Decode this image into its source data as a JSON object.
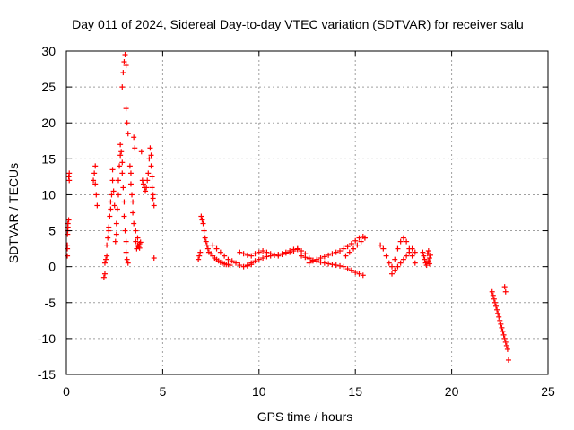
{
  "chart_data": {
    "type": "scatter",
    "title": "Day 011 of 2024, Sidereal Day-to-day VTEC variation (SDTVAR) for receiver salu",
    "xlabel": "GPS time / hours",
    "ylabel": "SDTVAR / TECUs",
    "xlim": [
      0,
      25
    ],
    "ylim": [
      -15,
      30
    ],
    "x_ticks": [
      0,
      5,
      10,
      15,
      20,
      25
    ],
    "y_ticks": [
      -15,
      -10,
      -5,
      0,
      5,
      10,
      15,
      20,
      25,
      30
    ],
    "x_tick_labels": [
      "0",
      "5",
      "10",
      "15",
      "20",
      "25"
    ],
    "y_tick_labels": [
      "-15",
      "-10",
      "-5",
      "0",
      "5",
      "10",
      "15",
      "20",
      "25",
      "30"
    ],
    "grid": true,
    "marker": "plus",
    "colors": {
      "points": "#ff0000",
      "grid": "#a0a0a0",
      "frame": "#000000"
    },
    "series": [
      {
        "name": "SDTVAR",
        "x": [
          0.05,
          0.05,
          0.05,
          0.06,
          0.07,
          0.08,
          0.08,
          0.12,
          0.12,
          0.15,
          0.15,
          1.4,
          1.45,
          1.5,
          1.5,
          1.55,
          1.6,
          1.95,
          2.0,
          2.0,
          2.05,
          2.1,
          2.1,
          2.15,
          2.2,
          2.2,
          2.25,
          2.3,
          2.3,
          2.35,
          2.4,
          2.4,
          2.45,
          2.5,
          2.55,
          2.6,
          2.6,
          2.65,
          2.7,
          2.7,
          2.75,
          2.8,
          2.8,
          2.85,
          2.9,
          2.9,
          2.95,
          3.0,
          3.0,
          3.05,
          3.1,
          3.1,
          3.15,
          3.2,
          2.9,
          2.95,
          3.0,
          3.05,
          3.1,
          3.1,
          3.15,
          3.2,
          3.3,
          3.35,
          3.35,
          3.4,
          3.45,
          3.45,
          3.5,
          3.5,
          3.55,
          3.6,
          3.6,
          3.65,
          3.7,
          3.7,
          3.75,
          3.8,
          3.8,
          3.85,
          3.9,
          3.95,
          4.0,
          4.05,
          4.1,
          4.15,
          4.2,
          4.25,
          4.3,
          4.35,
          4.4,
          4.4,
          4.45,
          4.45,
          4.5,
          4.5,
          4.55,
          4.55,
          6.85,
          6.9,
          6.95,
          7.0,
          7.05,
          7.1,
          7.15,
          7.2,
          7.25,
          7.3,
          7.35,
          7.4,
          7.5,
          7.6,
          7.7,
          7.8,
          7.9,
          8.0,
          8.1,
          8.2,
          8.3,
          8.4,
          8.5,
          7.6,
          7.8,
          8.0,
          8.2,
          8.4,
          8.6,
          8.8,
          9.0,
          9.2,
          9.4,
          9.6,
          9.0,
          9.2,
          9.4,
          9.6,
          9.8,
          10.0,
          10.2,
          10.4,
          10.6,
          10.8,
          11.0,
          11.2,
          11.4,
          11.6,
          11.8,
          12.0,
          9.4,
          9.6,
          9.8,
          10.0,
          10.2,
          10.4,
          10.6,
          10.8,
          11.0,
          11.2,
          11.4,
          11.6,
          11.8,
          12.0,
          12.2,
          12.4,
          12.6,
          12.8,
          12.2,
          12.4,
          12.6,
          12.8,
          13.0,
          13.2,
          13.4,
          13.6,
          13.8,
          14.0,
          14.2,
          14.4,
          14.6,
          14.8,
          15.0,
          15.2,
          15.4,
          12.6,
          12.8,
          13.0,
          13.2,
          13.4,
          13.6,
          13.8,
          14.0,
          14.2,
          14.4,
          14.6,
          14.8,
          15.0,
          15.2,
          15.4,
          15.5,
          14.5,
          14.7,
          14.9,
          15.1,
          15.3,
          15.5,
          16.3,
          16.45,
          16.6,
          16.75,
          16.9,
          17.05,
          17.2,
          17.35,
          17.5,
          17.65,
          17.8,
          17.95,
          18.1,
          16.9,
          17.05,
          17.2,
          17.35,
          17.5,
          17.65,
          17.8,
          17.95,
          18.1,
          18.5,
          18.55,
          18.6,
          18.65,
          18.7,
          18.75,
          18.8,
          18.8,
          18.85,
          18.85,
          18.9,
          22.1,
          22.15,
          22.2,
          22.25,
          22.3,
          22.35,
          22.4,
          22.45,
          22.5,
          22.55,
          22.6,
          22.65,
          22.7,
          22.75,
          22.8,
          22.85,
          22.9,
          22.95,
          22.8,
          22.75
        ],
        "y": [
          1.5,
          2.5,
          3.0,
          4.5,
          5.0,
          5.5,
          6.0,
          6.5,
          12.5,
          12.0,
          13.0,
          12.0,
          13.0,
          11.5,
          14.0,
          10.0,
          8.5,
          -1.5,
          -1.0,
          0.5,
          1.0,
          1.5,
          3.0,
          4.0,
          5.0,
          5.5,
          7.0,
          8.0,
          9.0,
          10.0,
          12.0,
          13.5,
          10.5,
          8.5,
          3.5,
          4.5,
          6.0,
          8.0,
          10.0,
          12.0,
          14.0,
          15.5,
          17.0,
          16.0,
          14.5,
          13.0,
          11.0,
          9.0,
          7.0,
          5.0,
          3.5,
          2.0,
          1.0,
          0.5,
          25.0,
          27.0,
          28.5,
          29.5,
          28.0,
          22.0,
          20.0,
          18.5,
          14.0,
          13.0,
          11.5,
          10.0,
          9.0,
          7.5,
          6.0,
          18.0,
          16.5,
          5.0,
          3.5,
          2.5,
          4.0,
          3.0,
          2.8,
          3.2,
          2.6,
          3.4,
          16.0,
          12.0,
          11.5,
          11.0,
          10.5,
          11.0,
          12.0,
          13.0,
          15.0,
          16.5,
          15.5,
          14.0,
          12.5,
          11.0,
          10.0,
          9.5,
          8.5,
          1.2,
          1.0,
          1.5,
          2.0,
          7.0,
          6.5,
          6.0,
          5.0,
          4.0,
          3.5,
          3.0,
          2.5,
          2.0,
          1.8,
          1.5,
          1.2,
          1.0,
          0.8,
          0.6,
          0.5,
          0.4,
          0.3,
          0.3,
          0.2,
          3.0,
          2.5,
          2.0,
          1.5,
          1.0,
          0.8,
          0.5,
          0.2,
          0.0,
          0.1,
          0.3,
          2.0,
          1.8,
          1.6,
          1.5,
          1.8,
          2.0,
          2.2,
          2.0,
          1.8,
          1.6,
          1.5,
          1.7,
          2.0,
          2.2,
          2.4,
          2.5,
          0.2,
          0.5,
          0.8,
          1.0,
          1.2,
          1.4,
          1.5,
          1.6,
          1.7,
          1.8,
          1.9,
          2.0,
          2.2,
          2.4,
          2.2,
          1.8,
          1.2,
          0.8,
          1.5,
          1.3,
          1.1,
          0.9,
          0.8,
          0.6,
          0.5,
          0.4,
          0.3,
          0.2,
          0.1,
          0.0,
          -0.3,
          -0.5,
          -0.8,
          -1.0,
          -1.2,
          0.5,
          0.8,
          1.0,
          1.2,
          1.4,
          1.6,
          1.8,
          2.0,
          2.2,
          2.5,
          2.8,
          3.2,
          3.6,
          4.0,
          4.2,
          4.0,
          1.5,
          2.0,
          2.5,
          3.0,
          3.5,
          4.0,
          3.0,
          2.5,
          1.5,
          0.5,
          0.0,
          1.0,
          2.5,
          3.5,
          4.0,
          3.5,
          2.5,
          1.5,
          0.5,
          -1.0,
          -0.5,
          0.0,
          0.5,
          1.0,
          1.5,
          2.0,
          2.5,
          2.0,
          2.0,
          1.5,
          1.0,
          0.5,
          0.2,
          1.8,
          0.8,
          2.2,
          1.2,
          0.4,
          1.6,
          -3.5,
          -4.0,
          -4.5,
          -5.0,
          -5.5,
          -6.0,
          -6.5,
          -7.0,
          -7.5,
          -8.0,
          -8.5,
          -9.0,
          -9.5,
          -10.0,
          -10.5,
          -11.0,
          -11.5,
          -13.0,
          -3.5,
          -2.8
        ]
      }
    ]
  }
}
